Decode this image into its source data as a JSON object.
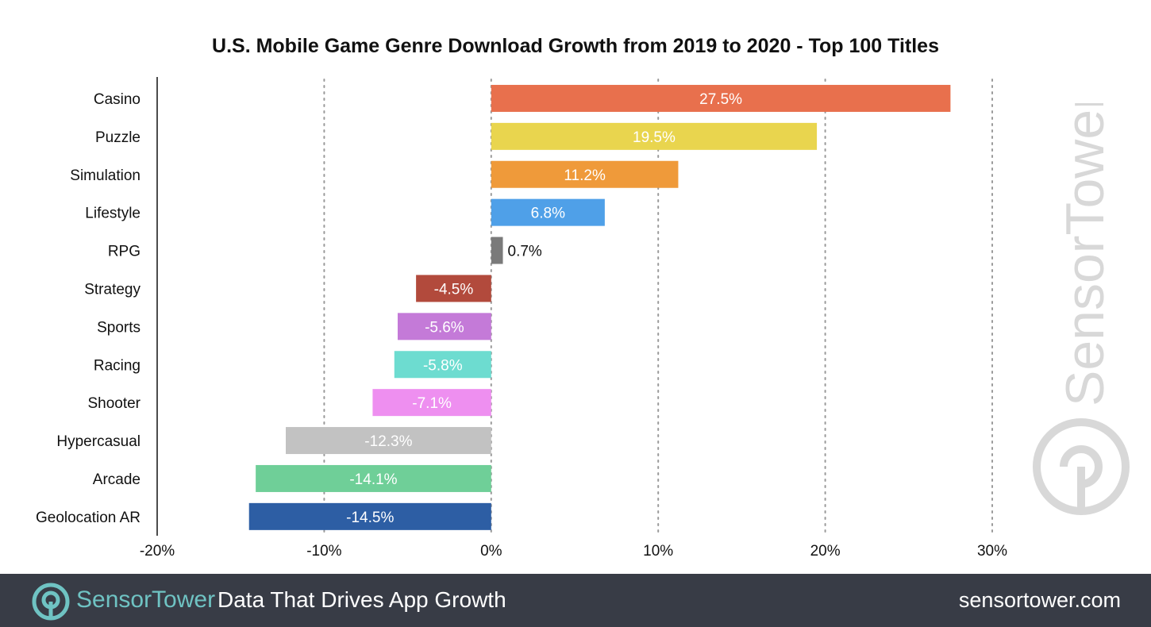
{
  "chart_data": {
    "type": "bar",
    "orientation": "horizontal",
    "title": "U.S. Mobile Game Genre Download Growth from 2019 to 2020 - Top 100 Titles",
    "xlabel": "",
    "ylabel": "",
    "xlim": [
      -20,
      30
    ],
    "xticks": [
      -20,
      -10,
      0,
      10,
      20,
      30
    ],
    "xtick_labels": [
      "-20%",
      "-10%",
      "0%",
      "10%",
      "20%",
      "30%"
    ],
    "grid": "vertical-dotted",
    "categories": [
      "Casino",
      "Puzzle",
      "Simulation",
      "Lifestyle",
      "RPG",
      "Strategy",
      "Sports",
      "Racing",
      "Shooter",
      "Hypercasual",
      "Arcade",
      "Geolocation AR"
    ],
    "values": [
      27.5,
      19.5,
      11.2,
      6.8,
      0.7,
      -4.5,
      -5.6,
      -5.8,
      -7.1,
      -12.3,
      -14.1,
      -14.5
    ],
    "value_labels": [
      "27.5%",
      "19.5%",
      "11.2%",
      "6.8%",
      "0.7%",
      "-4.5%",
      "-5.6%",
      "-5.8%",
      "-7.1%",
      "-12.3%",
      "-14.1%",
      "-14.5%"
    ],
    "colors": [
      "#e8704d",
      "#e9d54e",
      "#ef9a3a",
      "#4fa0e8",
      "#7a7a7a",
      "#b24a3c",
      "#c47ad8",
      "#6ddcd0",
      "#ee8ff0",
      "#c2c2c2",
      "#6fcf98",
      "#2d5ea4"
    ]
  },
  "watermark": {
    "text": "SensorTower"
  },
  "footer": {
    "brand": "SensorTower",
    "tagline": "Data That Drives App Growth",
    "url": "sensortower.com"
  },
  "colors": {
    "footer_bg": "#383c46",
    "brand_teal": "#6fc3c3",
    "watermark_gray": "#d8d8d8"
  }
}
